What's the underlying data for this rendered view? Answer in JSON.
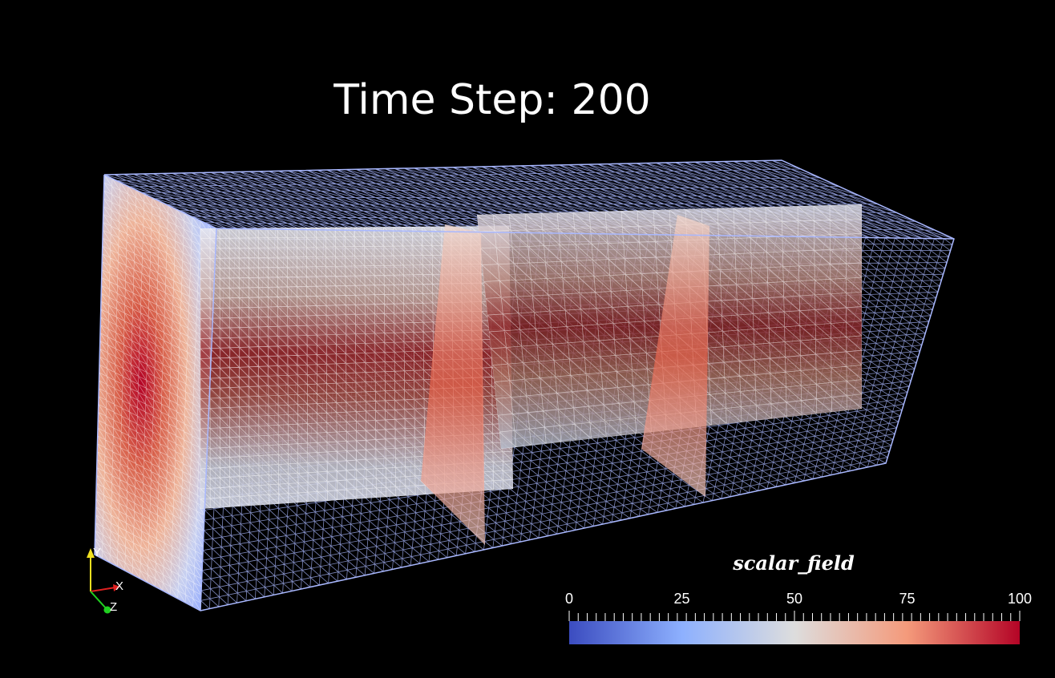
{
  "overlay": {
    "title": "Time Step: 200"
  },
  "scalar_bar": {
    "title": "scalar_field",
    "tick_labels": [
      "0",
      "25",
      "50",
      "75",
      "100"
    ],
    "range": [
      0,
      100
    ],
    "colormap": "Cool to Warm",
    "low_color": "#3b4cc0",
    "mid_color": "#dddddd",
    "high_color": "#b40426"
  },
  "axes_widget": {
    "x_label": "X",
    "y_label": "Y",
    "z_label": "Z",
    "x_color": "#e02020",
    "y_color": "#f0e020",
    "z_color": "#20d020"
  },
  "scene": {
    "background": "#000000",
    "mesh_color": "#a9b8ff",
    "representation": "Surface With Edges"
  }
}
